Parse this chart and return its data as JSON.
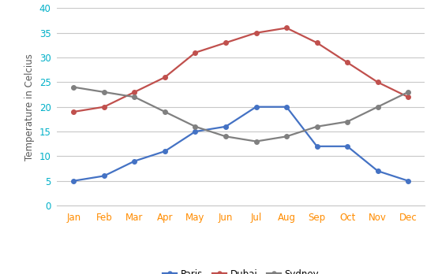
{
  "months": [
    "Jan",
    "Feb",
    "Mar",
    "Apr",
    "May",
    "Jun",
    "Jul",
    "Aug",
    "Sep",
    "Oct",
    "Nov",
    "Dec"
  ],
  "paris": [
    5,
    6,
    9,
    11,
    15,
    16,
    20,
    20,
    12,
    12,
    7,
    5
  ],
  "dubai": [
    19,
    20,
    23,
    26,
    31,
    33,
    35,
    36,
    33,
    29,
    25,
    22
  ],
  "sydney": [
    24,
    23,
    22,
    19,
    16,
    14,
    13,
    14,
    16,
    17,
    20,
    23
  ],
  "paris_color": "#4472C4",
  "dubai_color": "#C0504D",
  "sydney_color": "#808080",
  "xtick_color": "#FF8C00",
  "ytick_color": "#00B0C8",
  "ylabel": "Temperature in Celcius",
  "ylabel_color": "#595959",
  "ylim": [
    0,
    40
  ],
  "yticks": [
    0,
    5,
    10,
    15,
    20,
    25,
    30,
    35,
    40
  ],
  "legend_labels": [
    "Paris",
    "Dubai",
    "Sydney"
  ],
  "background_color": "#FFFFFF",
  "grid_color": "#C8C8C8",
  "marker": "o",
  "linewidth": 1.6,
  "markersize": 4
}
